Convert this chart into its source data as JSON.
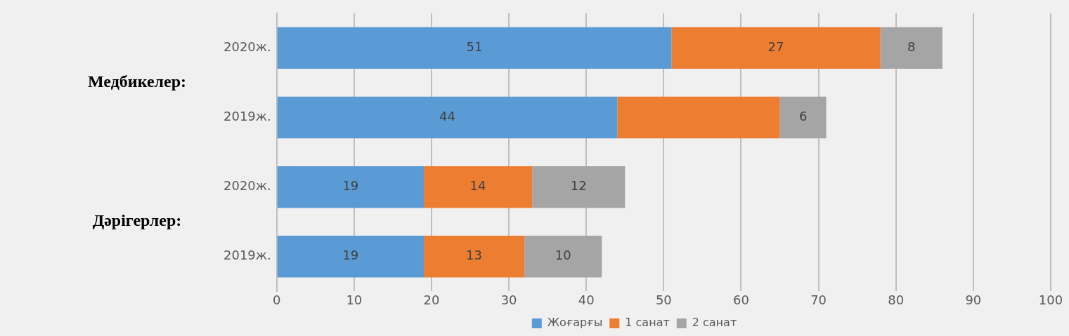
{
  "chart_data": {
    "type": "bar",
    "orientation": "horizontal",
    "stacked": true,
    "categories": [
      "2020ж.",
      "2019ж.",
      "2020ж.",
      "2019ж."
    ],
    "series": [
      {
        "name": "Жоғарғы",
        "color": "#5b9bd5",
        "values": [
          51,
          44,
          19,
          19
        ],
        "value_labels": [
          "51",
          "44",
          "19",
          "19"
        ]
      },
      {
        "name": "1 санат",
        "color": "#ed7d31",
        "values": [
          27,
          21,
          14,
          13
        ],
        "value_labels": [
          "27",
          null,
          "14",
          "13"
        ]
      },
      {
        "name": "2 санат",
        "color": "#a5a5a5",
        "values": [
          8,
          6,
          12,
          10
        ],
        "value_labels": [
          "8",
          "6",
          "12",
          "10"
        ]
      }
    ],
    "xlim": [
      0,
      100
    ],
    "xticks": [
      0,
      10,
      20,
      30,
      40,
      50,
      60,
      70,
      80,
      90,
      100
    ],
    "grid": "x",
    "legend": "bottom",
    "annotations": [
      "Медбикелер:",
      "Дәрігерлер:"
    ]
  }
}
